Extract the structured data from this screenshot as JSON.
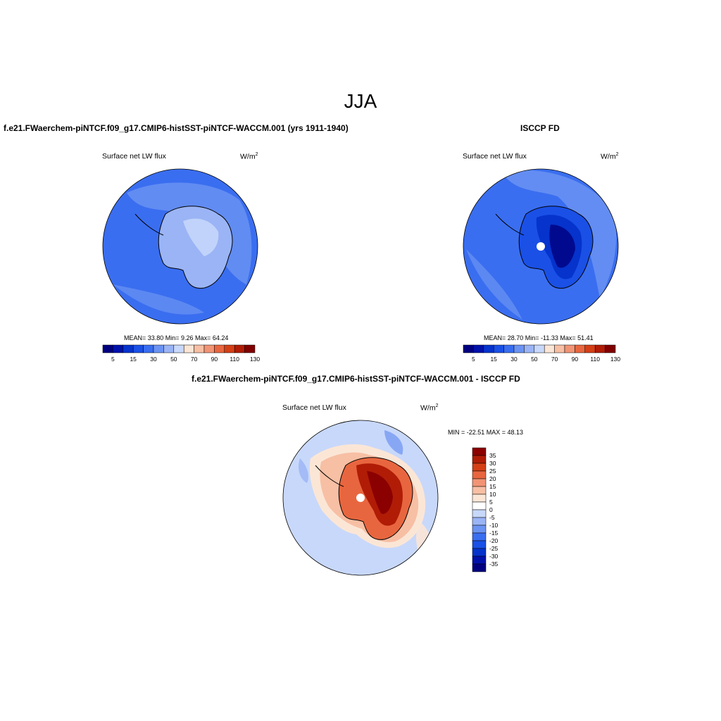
{
  "figure": {
    "season": "JJA",
    "top_left": {
      "title": "f.e21.FWaerchem-piNTCF.f09_g17.CMIP6-histSST-piNTCF-WACCM.001 (yrs 1911-1940)",
      "variable": "Surface net LW flux",
      "units_base": "W/m",
      "units_exp": "2",
      "stats": "MEAN=  33.80  Min=   9.26  Max=  64.24"
    },
    "top_right": {
      "title": "ISCCP FD",
      "variable": "Surface net LW flux",
      "units_base": "W/m",
      "units_exp": "2",
      "stats": "MEAN=  28.70  Min= -11.33  Max=  51.41"
    },
    "bottom": {
      "title": "f.e21.FWaerchem-piNTCF.f09_g17.CMIP6-histSST-piNTCF-WACCM.001 - ISCCP FD",
      "variable": "Surface net LW flux",
      "units_base": "W/m",
      "units_exp": "2",
      "stats": "MIN = -22.51 MAX =  48.13"
    }
  },
  "colorbars": {
    "abs_labels": [
      "5",
      "15",
      "30",
      "50",
      "70",
      "90",
      "110",
      "130"
    ],
    "abs_colors": [
      "#000080",
      "#0011aa",
      "#0533cc",
      "#1a50e6",
      "#3a6ef0",
      "#6b93f2",
      "#9ab4f5",
      "#c8d8fa",
      "#fbe6d6",
      "#f7bfa4",
      "#f19475",
      "#e8663f",
      "#d43f16",
      "#b01c06",
      "#800000"
    ],
    "diff_labels": [
      "35",
      "30",
      "25",
      "20",
      "15",
      "10",
      "5",
      "0",
      "-5",
      "-10",
      "-15",
      "-20",
      "-25",
      "-30",
      "-35"
    ],
    "diff_colors": [
      "#8b0000",
      "#b01c06",
      "#d43f16",
      "#e8663f",
      "#f19475",
      "#f7bfa4",
      "#fbe6d6",
      "#ffffff",
      "#c8d8fa",
      "#9ab4f5",
      "#6b93f2",
      "#3a6ef0",
      "#1a50e6",
      "#0533cc",
      "#0011aa",
      "#000080"
    ]
  },
  "maps": {
    "colors": {
      "ocean_mid": "#6b93f2",
      "ocean_light": "#9ab4f5",
      "ocean_deep": "#3a6ef0",
      "ice_dark": "#1a50e6",
      "ice_darkest": "#0533cc",
      "diff_ocean": "#c8d8fa",
      "diff_warm1": "#fbe6d6",
      "diff_warm2": "#f7bfa4",
      "diff_warm3": "#e8663f",
      "diff_warm4": "#b01c06"
    }
  }
}
